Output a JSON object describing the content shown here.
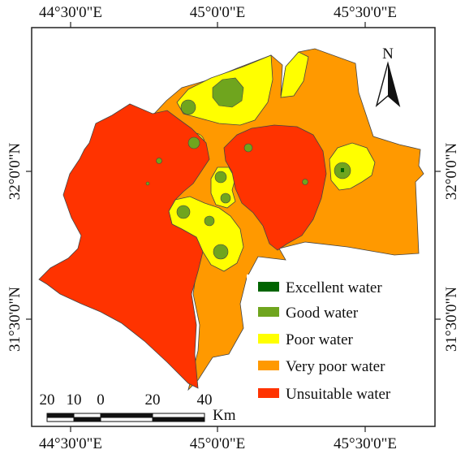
{
  "axes": {
    "top": [
      "44°30'0\"E",
      "45°0'0\"E",
      "45°30'0\"E"
    ],
    "bottom": [
      "44°30'0\"E",
      "45°0'0\"E",
      "45°30'0\"E"
    ],
    "left": [
      "32°0'0\"N",
      "31°30'0\"N"
    ],
    "right": [
      "32°0'0\"N",
      "31°30'0\"N"
    ]
  },
  "north_arrow": {
    "label": "N"
  },
  "legend": [
    {
      "label": "Excellent water",
      "color": "#006400"
    },
    {
      "label": "Good water",
      "color": "#6fa51e"
    },
    {
      "label": "Poor water",
      "color": "#ffff00"
    },
    {
      "label": "Very poor water",
      "color": "#ff9900"
    },
    {
      "label": "Unsuitable water",
      "color": "#ff3300"
    }
  ],
  "scale_bar": {
    "ticks": [
      "20",
      "10",
      "0",
      "20",
      "40"
    ],
    "unit": "Km"
  }
}
